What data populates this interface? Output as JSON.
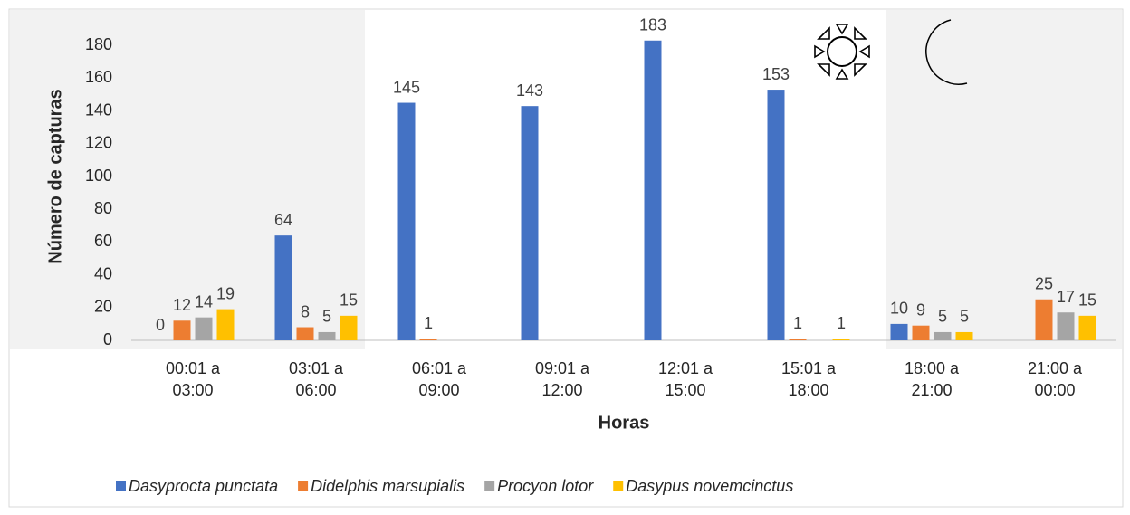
{
  "chart_data": {
    "type": "bar",
    "categories": [
      "00:01 a 03:00",
      "03:01 a 06:00",
      "06:01 a 09:00",
      "09:01 a 12:00",
      "12:01 a 15:00",
      "15:01 a 18:00",
      "18:00 a 21:00",
      "21:00 a 00:00"
    ],
    "series": [
      {
        "name": "Dasyprocta punctata",
        "color": "#4472c4",
        "values": [
          0,
          64,
          145,
          143,
          183,
          153,
          10,
          null
        ]
      },
      {
        "name": "Didelphis marsupialis",
        "color": "#ed7d31",
        "values": [
          12,
          8,
          1,
          null,
          null,
          1,
          9,
          25
        ]
      },
      {
        "name": "Procyon lotor",
        "color": "#a5a5a5",
        "values": [
          14,
          5,
          null,
          null,
          null,
          null,
          5,
          17
        ]
      },
      {
        "name": "Dasypus novemcinctus",
        "color": "#ffc000",
        "values": [
          19,
          15,
          null,
          null,
          null,
          1,
          5,
          15
        ]
      }
    ],
    "ylabel": "Número de capturas",
    "xlabel": "Horas",
    "ylim": [
      0,
      200
    ],
    "yticks": [
      0,
      20,
      40,
      60,
      80,
      100,
      120,
      140,
      160,
      180
    ],
    "grid": false,
    "legend": "bottom"
  }
}
